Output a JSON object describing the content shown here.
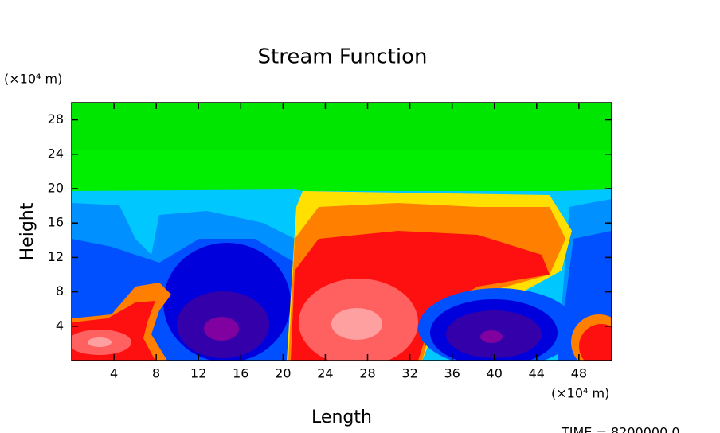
{
  "chart_data": {
    "type": "contour",
    "title": "Stream Function",
    "x_label": "Length",
    "y_label": "Height",
    "x_unit": "(×10⁴ m)",
    "y_unit": "(×10⁴ m)",
    "footer": "TIME = 8200000.0",
    "xlim": [
      0,
      51.1
    ],
    "ylim": [
      0,
      30
    ],
    "xticks": [
      4,
      8,
      12,
      16,
      20,
      24,
      28,
      32,
      36,
      40,
      44,
      48
    ],
    "yticks": [
      4,
      8,
      12,
      16,
      20,
      24,
      28
    ]
  }
}
